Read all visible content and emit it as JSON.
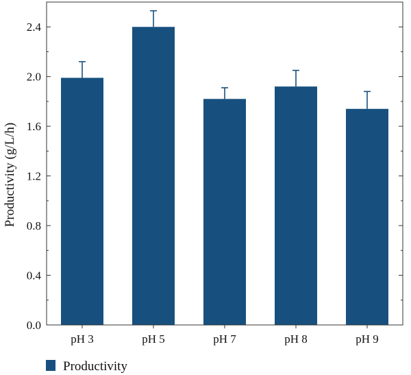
{
  "chart_data": {
    "type": "bar",
    "title": "",
    "xlabel": "",
    "ylabel": "Productivity (g/L/h)",
    "categories": [
      "pH 3",
      "pH 5",
      "pH 7",
      "pH 8",
      "pH 9"
    ],
    "series": [
      {
        "name": "Productivity",
        "values": [
          1.99,
          2.4,
          1.82,
          1.92,
          1.74
        ],
        "errors": [
          0.13,
          0.13,
          0.09,
          0.13,
          0.14
        ],
        "color": "#17507e"
      }
    ],
    "ylim": [
      0,
      2.6
    ],
    "yticks": [
      "0.0",
      "0.4",
      "0.8",
      "1.2",
      "1.6",
      "2.0",
      "2.4"
    ],
    "grid": false,
    "legend": {
      "placement": "bottom-left"
    }
  }
}
